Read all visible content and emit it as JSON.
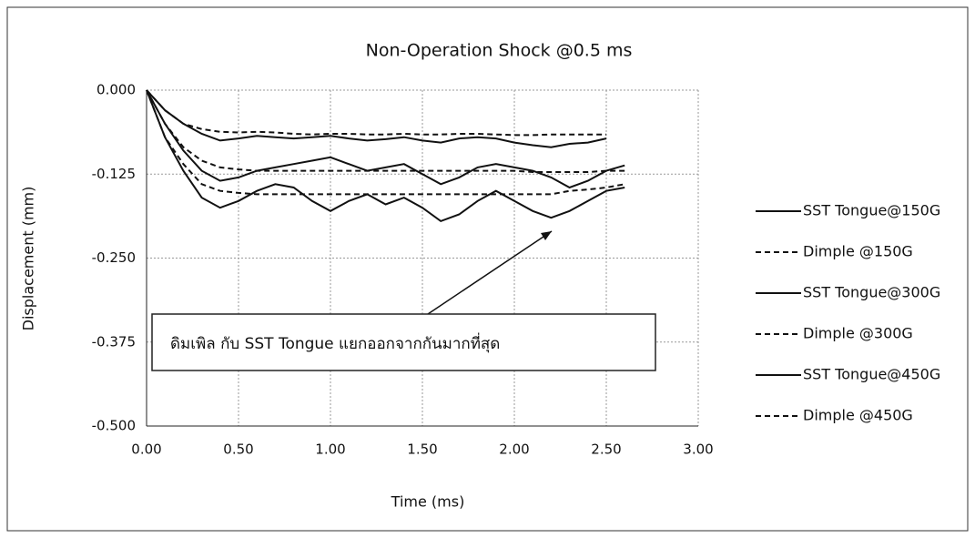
{
  "chart_data": {
    "type": "line",
    "title": "Non-Operation Shock @0.5 ms",
    "x_label": "Time (ms)",
    "y_label": "Displacement (mm)",
    "annotation": "ดิมเพิล กับ SST Tongue แยกออกจากกันมากที่สุด",
    "x": [
      0,
      0.1,
      0.2,
      0.3,
      0.4,
      0.5,
      0.6,
      0.7,
      0.8,
      0.9,
      1.0,
      1.1,
      1.2,
      1.3,
      1.4,
      1.5,
      1.6,
      1.7,
      1.8,
      1.9,
      2.0,
      2.1,
      2.2,
      2.3,
      2.4,
      2.5,
      2.6
    ],
    "series": [
      {
        "name": "SST Tongue@150G",
        "color": "#111111",
        "style": "solid",
        "values": [
          0,
          -0.03,
          -0.05,
          -0.065,
          -0.075,
          -0.072,
          -0.068,
          -0.07,
          -0.072,
          -0.07,
          -0.068,
          -0.072,
          -0.075,
          -0.073,
          -0.07,
          -0.075,
          -0.078,
          -0.072,
          -0.07,
          -0.072,
          -0.078,
          -0.082,
          -0.085,
          -0.08,
          -0.078,
          -0.072,
          null
        ]
      },
      {
        "name": "Dimple @150G",
        "color": "#111111",
        "style": "dashed",
        "values": [
          0,
          -0.03,
          -0.05,
          -0.058,
          -0.062,
          -0.063,
          -0.062,
          -0.063,
          -0.065,
          -0.066,
          -0.065,
          -0.065,
          -0.066,
          -0.066,
          -0.065,
          -0.066,
          -0.066,
          -0.065,
          -0.065,
          -0.066,
          -0.067,
          -0.067,
          -0.066,
          -0.066,
          -0.066,
          -0.066,
          null
        ]
      },
      {
        "name": "SST Tongue@300G",
        "color": "#111111",
        "style": "solid",
        "values": [
          0,
          -0.05,
          -0.09,
          -0.12,
          -0.135,
          -0.13,
          -0.12,
          -0.115,
          -0.11,
          -0.105,
          -0.1,
          -0.11,
          -0.12,
          -0.115,
          -0.11,
          -0.125,
          -0.14,
          -0.13,
          -0.115,
          -0.11,
          -0.115,
          -0.12,
          -0.13,
          -0.145,
          -0.135,
          -0.12,
          -0.112
        ]
      },
      {
        "name": "Dimple @300G",
        "color": "#111111",
        "style": "dashed",
        "values": [
          0,
          -0.05,
          -0.085,
          -0.105,
          -0.115,
          -0.118,
          -0.12,
          -0.12,
          -0.12,
          -0.12,
          -0.12,
          -0.12,
          -0.12,
          -0.12,
          -0.12,
          -0.12,
          -0.12,
          -0.12,
          -0.12,
          -0.12,
          -0.12,
          -0.122,
          -0.122,
          -0.122,
          -0.122,
          -0.12,
          -0.12
        ]
      },
      {
        "name": "SST Tongue@450G",
        "color": "#111111",
        "style": "solid",
        "values": [
          0,
          -0.07,
          -0.12,
          -0.16,
          -0.175,
          -0.165,
          -0.15,
          -0.14,
          -0.145,
          -0.165,
          -0.18,
          -0.165,
          -0.155,
          -0.17,
          -0.16,
          -0.175,
          -0.195,
          -0.185,
          -0.165,
          -0.15,
          -0.165,
          -0.18,
          -0.19,
          -0.18,
          -0.165,
          -0.15,
          -0.145
        ]
      },
      {
        "name": "Dimple @450G",
        "color": "#111111",
        "style": "dashed",
        "values": [
          0,
          -0.07,
          -0.11,
          -0.14,
          -0.15,
          -0.153,
          -0.155,
          -0.155,
          -0.155,
          -0.155,
          -0.155,
          -0.155,
          -0.155,
          -0.155,
          -0.155,
          -0.155,
          -0.155,
          -0.155,
          -0.155,
          -0.155,
          -0.155,
          -0.155,
          -0.155,
          -0.15,
          -0.148,
          -0.145,
          -0.14
        ]
      }
    ],
    "xlim": [
      0,
      3
    ],
    "xticks": [
      {
        "value": 0,
        "label": "0.00"
      },
      {
        "value": 0.5,
        "label": "0.50"
      },
      {
        "value": 1,
        "label": "1.00"
      },
      {
        "value": 1.5,
        "label": "1.50"
      },
      {
        "value": 2,
        "label": "2.00"
      },
      {
        "value": 2.5,
        "label": "2.50"
      },
      {
        "value": 3,
        "label": "3.00"
      }
    ],
    "ylim": [
      -0.5,
      0
    ],
    "yticks": [
      {
        "value": 0,
        "label": "0.000"
      },
      {
        "value": -0.125,
        "label": "-0.125"
      },
      {
        "value": -0.25,
        "label": "-0.250"
      },
      {
        "value": -0.375,
        "label": "-0.375"
      },
      {
        "value": -0.5,
        "label": "-0.500"
      }
    ],
    "grid": true,
    "legend": "right"
  }
}
